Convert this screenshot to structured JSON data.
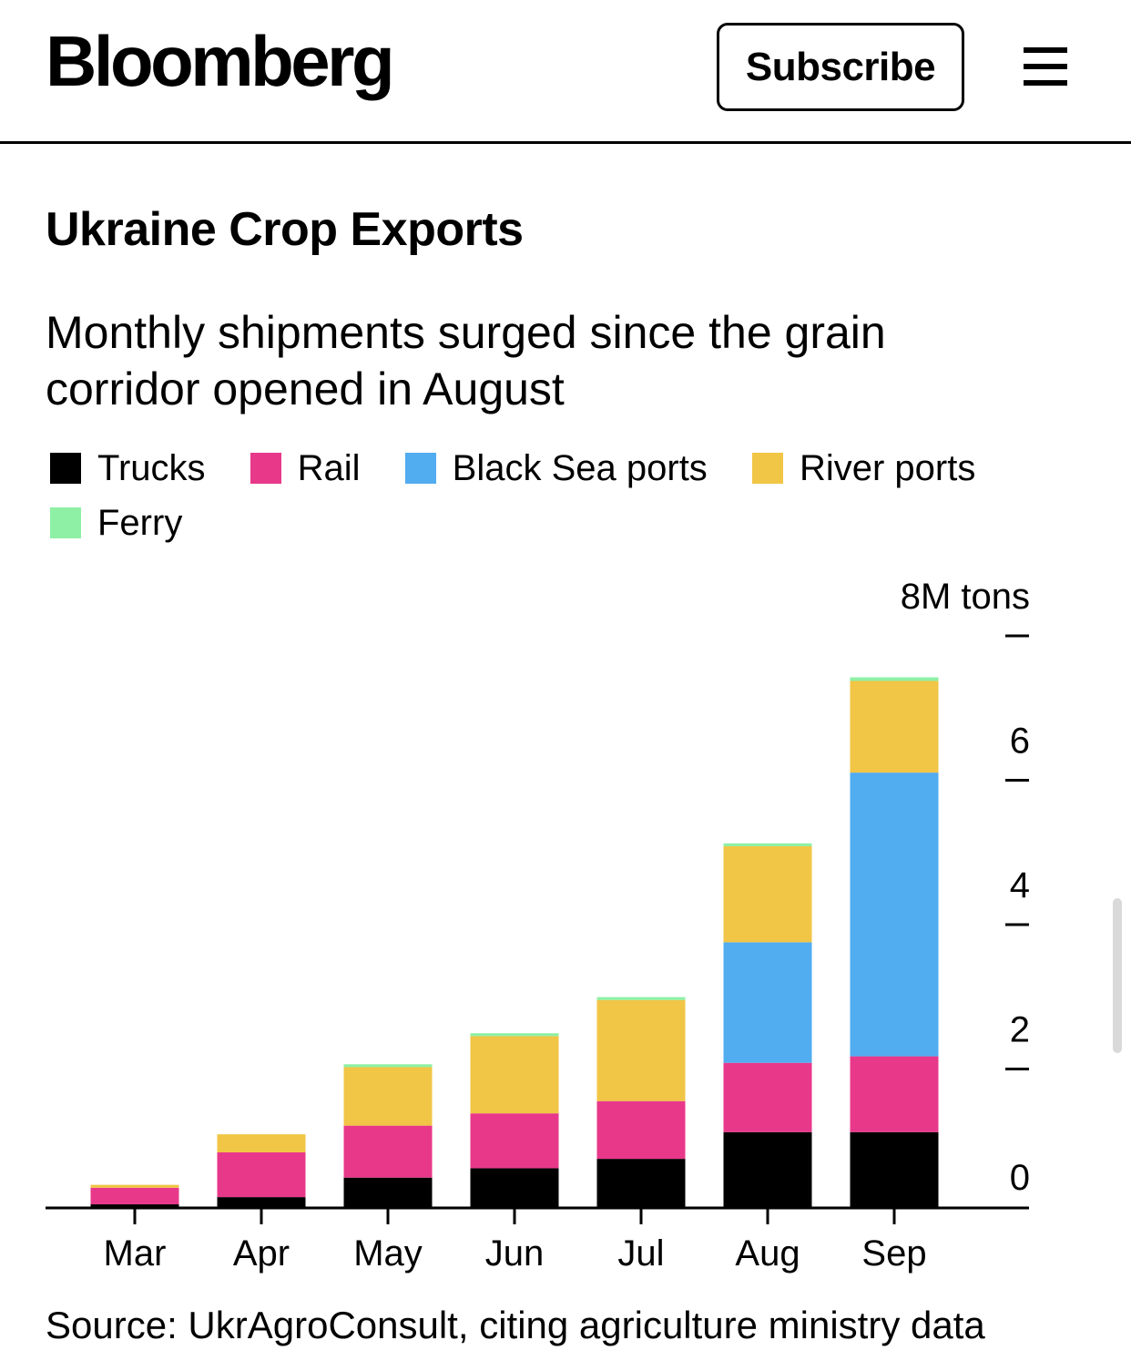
{
  "header": {
    "brand": "Bloomberg",
    "subscribe_label": "Subscribe",
    "menu_icon": "hamburger-menu-icon"
  },
  "chart": {
    "title": "Ukraine Crop Exports",
    "subtitle": "Monthly shipments surged since the grain corridor opened in August",
    "source": "Source: UkrAgroConsult, citing agriculture ministry data"
  },
  "colors": {
    "trucks": "#000000",
    "rail": "#e8388a",
    "black_sea_ports": "#51acf0",
    "river_ports": "#f1c545",
    "ferry": "#8ef0a4"
  },
  "chart_data": {
    "type": "bar",
    "stacked": true,
    "title": "Ukraine Crop Exports",
    "subtitle": "Monthly shipments surged since the grain corridor opened in August",
    "categories": [
      "Mar",
      "Apr",
      "May",
      "Jun",
      "Jul",
      "Aug",
      "Sep"
    ],
    "series": [
      {
        "key": "trucks",
        "name": "Trucks",
        "values": [
          0.05,
          0.15,
          0.42,
          0.55,
          0.68,
          1.05,
          1.05
        ]
      },
      {
        "key": "rail",
        "name": "Rail",
        "values": [
          0.23,
          0.62,
          0.72,
          0.76,
          0.8,
          0.96,
          1.05
        ]
      },
      {
        "key": "black_sea_ports",
        "name": "Black Sea ports",
        "values": [
          0,
          0,
          0,
          0,
          0,
          1.67,
          3.93
        ]
      },
      {
        "key": "river_ports",
        "name": "River ports",
        "values": [
          0.04,
          0.25,
          0.81,
          1.07,
          1.4,
          1.33,
          1.27
        ]
      },
      {
        "key": "ferry",
        "name": "Ferry",
        "values": [
          0,
          0,
          0.04,
          0.04,
          0.04,
          0.04,
          0.05
        ]
      }
    ],
    "y_unit_label": "8M tons",
    "y_ticks": [
      0,
      2,
      4,
      6,
      8
    ],
    "y_tick_labels": [
      "0",
      "2",
      "4",
      "6",
      "8M tons"
    ],
    "ylim": [
      0,
      8
    ],
    "ylabel": "",
    "xlabel": "",
    "grid": false,
    "legend_position": "top-left"
  }
}
